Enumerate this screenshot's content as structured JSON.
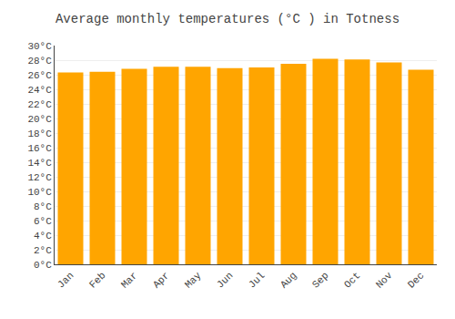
{
  "chart_data": {
    "type": "bar",
    "title": "Average monthly temperatures (°C ) in Totness",
    "categories": [
      "Jan",
      "Feb",
      "Mar",
      "Apr",
      "May",
      "Jun",
      "Jul",
      "Aug",
      "Sep",
      "Oct",
      "Nov",
      "Dec"
    ],
    "values": [
      26.3,
      26.4,
      26.8,
      27.1,
      27.1,
      26.9,
      27.0,
      27.5,
      28.2,
      28.1,
      27.7,
      26.7
    ],
    "color": "#FFA500",
    "ylim": [
      0,
      30
    ],
    "yticks": [
      {
        "value": 0,
        "label": "0°C"
      },
      {
        "value": 2,
        "label": "2°C"
      },
      {
        "value": 4,
        "label": "4°C"
      },
      {
        "value": 6,
        "label": "6°C"
      },
      {
        "value": 8,
        "label": "8°C"
      },
      {
        "value": 10,
        "label": "10°C"
      },
      {
        "value": 12,
        "label": "12°C"
      },
      {
        "value": 14,
        "label": "14°C"
      },
      {
        "value": 16,
        "label": "16°C"
      },
      {
        "value": 18,
        "label": "18°C"
      },
      {
        "value": 20,
        "label": "20°C"
      },
      {
        "value": 22,
        "label": "22°C"
      },
      {
        "value": 24,
        "label": "24°C"
      },
      {
        "value": 26,
        "label": "26°C"
      },
      {
        "value": 28,
        "label": "28°C"
      },
      {
        "value": 30,
        "label": "30°C"
      }
    ],
    "grid": true
  }
}
